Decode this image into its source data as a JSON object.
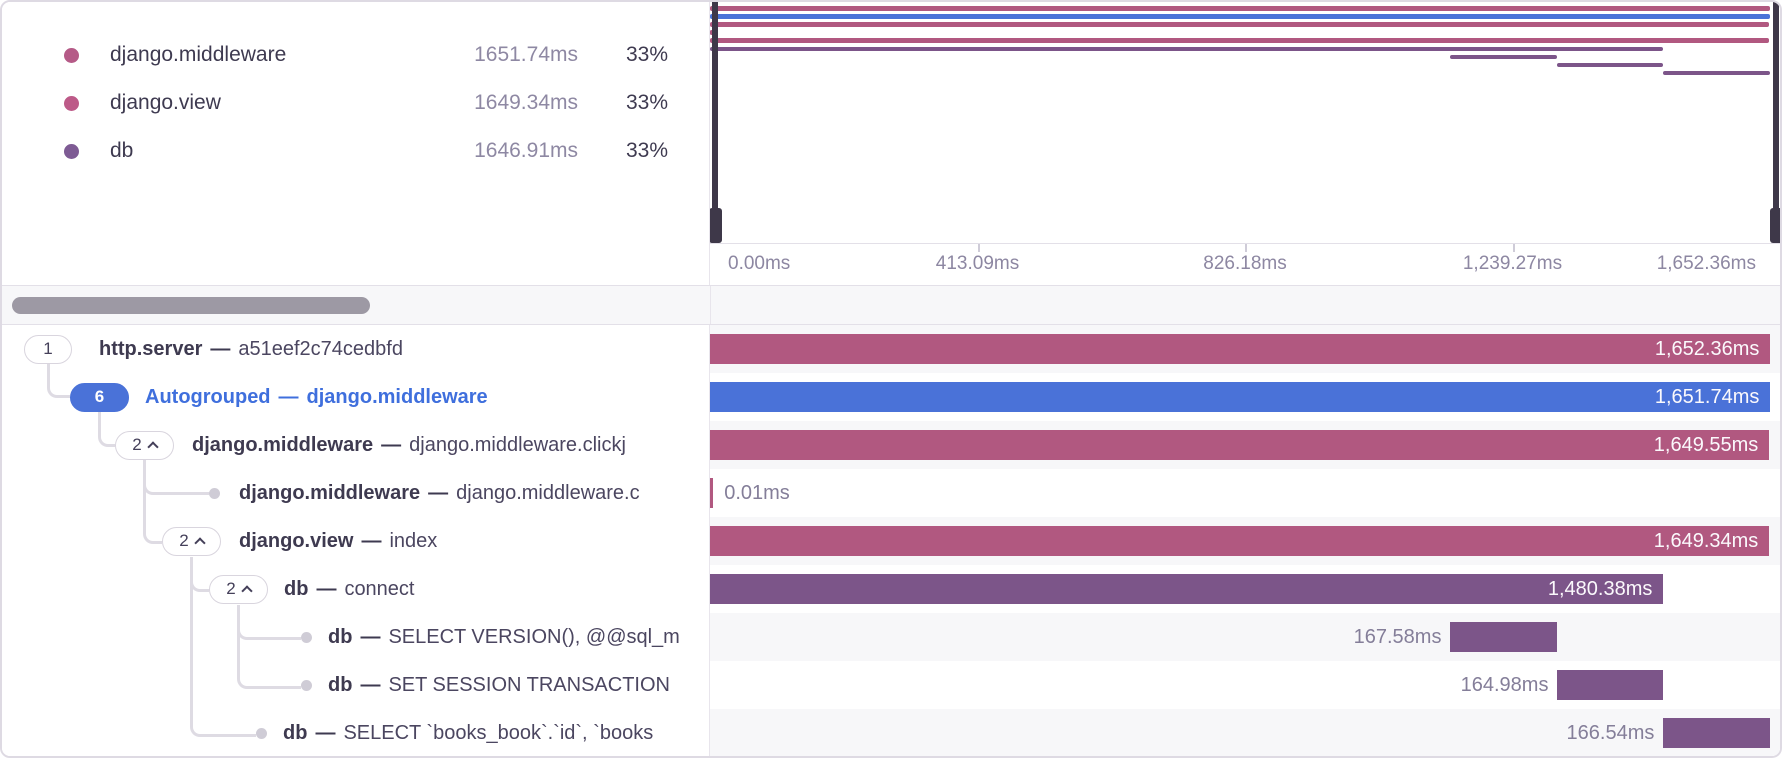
{
  "legend": {
    "items": [
      {
        "label": "django.middleware",
        "duration": "1651.74ms",
        "percent": "33%",
        "color": "#b55a87"
      },
      {
        "label": "django.view",
        "duration": "1649.34ms",
        "percent": "33%",
        "color": "#bd5a88"
      },
      {
        "label": "db",
        "duration": "1646.91ms",
        "percent": "33%",
        "color": "#7e5b94"
      }
    ]
  },
  "timeline_axis": {
    "ticks": [
      "0.00ms",
      "413.09ms",
      "826.18ms",
      "1,239.27ms",
      "1,652.36ms"
    ]
  },
  "colors": {
    "pink": "#b15880",
    "blue": "#4a72d8",
    "purple": "#7c5589"
  },
  "spans": [
    {
      "badge": "1",
      "chevron": false,
      "autogrouped": false,
      "op": "http.server",
      "sep": "—",
      "description": "a51eef2c74cedbfd",
      "duration": "1,652.36ms",
      "bar": {
        "color": "#b15880",
        "left_pct": 0,
        "width_pct": 99.1,
        "label_position": "inside"
      }
    },
    {
      "badge": "6",
      "chevron": false,
      "autogrouped": true,
      "op": "Autogrouped",
      "sep": "—",
      "description": "django.middleware",
      "duration": "1,651.74ms",
      "bar": {
        "color": "#4a72d8",
        "left_pct": 0,
        "width_pct": 99.1,
        "label_position": "inside"
      }
    },
    {
      "badge": "2",
      "chevron": true,
      "autogrouped": false,
      "op": "django.middleware",
      "sep": "—",
      "description": "django.middleware.clickj",
      "duration": "1,649.55ms",
      "bar": {
        "color": "#b15880",
        "left_pct": 0,
        "width_pct": 99.0,
        "label_position": "inside"
      }
    },
    {
      "badge": null,
      "chevron": false,
      "autogrouped": false,
      "op": "django.middleware",
      "sep": "—",
      "description": "django.middleware.c",
      "duration": "0.01ms",
      "bar": {
        "color": "#b15880",
        "left_pct": 0,
        "width_pct": 0.3,
        "label_position": "outside-right"
      }
    },
    {
      "badge": "2",
      "chevron": true,
      "autogrouped": false,
      "op": "django.view",
      "sep": "—",
      "description": "index",
      "duration": "1,649.34ms",
      "bar": {
        "color": "#b15880",
        "left_pct": 0,
        "width_pct": 99.0,
        "label_position": "inside"
      }
    },
    {
      "badge": "2",
      "chevron": true,
      "autogrouped": false,
      "op": "db",
      "sep": "—",
      "description": "connect",
      "duration": "1,480.38ms",
      "bar": {
        "color": "#7c5589",
        "left_pct": 0,
        "width_pct": 89.1,
        "label_position": "inside"
      }
    },
    {
      "badge": null,
      "chevron": false,
      "autogrouped": false,
      "op": "db",
      "sep": "—",
      "description": "SELECT VERSION(), @@sql_m",
      "duration": "167.58ms",
      "bar": {
        "color": "#7c5589",
        "left_pct": 69.2,
        "width_pct": 10.0,
        "label_position": "outside-left"
      }
    },
    {
      "badge": null,
      "chevron": false,
      "autogrouped": false,
      "op": "db",
      "sep": "—",
      "description": "SET SESSION TRANSACTION",
      "duration": "164.98ms",
      "bar": {
        "color": "#7c5589",
        "left_pct": 79.2,
        "width_pct": 9.9,
        "label_position": "outside-left"
      }
    },
    {
      "badge": null,
      "chevron": false,
      "autogrouped": false,
      "op": "db",
      "sep": "—",
      "description": "SELECT `books_book`.`id`, `books",
      "duration": "166.54ms",
      "bar": {
        "color": "#7c5589",
        "left_pct": 89.1,
        "width_pct": 10.0,
        "label_position": "outside-left"
      }
    }
  ]
}
